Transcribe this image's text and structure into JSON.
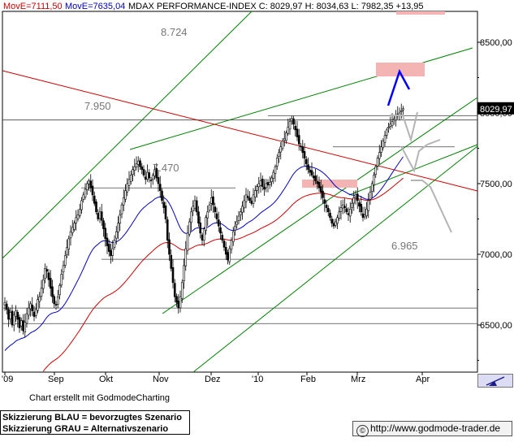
{
  "header": {
    "ma1": "MovE=7111,50",
    "ma2": "MovE=7635,04",
    "info": "MDAX PERFORMANCE-INDEX C: 8029,97 H: 8034,63 L: 7982,35 +13,95"
  },
  "colors": {
    "ma1": "#d10000",
    "ma2": "#0000c8",
    "candles": "#000000",
    "trend": "#008000",
    "resistance": "#d00000",
    "scenario_blue": "#0000ff",
    "scenario_gray": "#b4b4b4",
    "zone": "#f5b4b4"
  },
  "footer": {
    "credit": "Chart erstellt mit GodmodeCharting",
    "legend_blue": "Skizzierung BLAU = bevorzugtes Szenario",
    "legend_gray": "Skizzierung GRAU = Alternativszenario",
    "website": "http://www.godmode-trader.de"
  },
  "chart_data": {
    "type": "candlestick",
    "title": "MDAX PERFORMANCE-INDEX",
    "ylim": [
      6150,
      8800
    ],
    "y_ticks": [
      "6500,00",
      "7000,00",
      "7500,00",
      "8000,00",
      "8500,00"
    ],
    "y_tick_values": [
      6500,
      7000,
      7500,
      8000,
      8500
    ],
    "x_tick_labels": [
      "'09",
      "Sep",
      "Okt",
      "Nov",
      "Dez",
      "'10",
      "Feb",
      "Mrz",
      "Apr"
    ],
    "last_price_label": "8029,97",
    "horizontal_levels": [
      {
        "label": "8.724",
        "value": 8724
      },
      {
        "label": "7.950",
        "value": 7950
      },
      {
        "label": "7.470",
        "value": 7470
      },
      {
        "label": "6.965",
        "value": 6965
      }
    ],
    "last_candle": {
      "close": 8029.97,
      "high": 8034.63,
      "low": 7982.35,
      "change": 13.95
    },
    "moving_averages": [
      {
        "name": "MovE",
        "value": 7111.5
      },
      {
        "name": "MovE",
        "value": 7635.04
      }
    ],
    "closes": [
      6660,
      6610,
      6540,
      6590,
      6500,
      6570,
      6600,
      6540,
      6480,
      6530,
      6460,
      6520,
      6580,
      6620,
      6650,
      6600,
      6560,
      6610,
      6680,
      6700,
      6760,
      6820,
      6900,
      6880,
      6820,
      6760,
      6700,
      6650,
      6640,
      6700,
      6780,
      6860,
      6920,
      6990,
      7050,
      7110,
      7160,
      7190,
      7220,
      7260,
      7280,
      7320,
      7380,
      7420,
      7460,
      7500,
      7520,
      7470,
      7420,
      7360,
      7300,
      7250,
      7300,
      7240,
      7180,
      7110,
      7060,
      7020,
      6990,
      7040,
      7100,
      7160,
      7220,
      7280,
      7350,
      7400,
      7450,
      7500,
      7530,
      7560,
      7600,
      7620,
      7640,
      7660,
      7620,
      7600,
      7560,
      7530,
      7580,
      7540,
      7520,
      7560,
      7600,
      7540,
      7500,
      7450,
      7380,
      7330,
      7250,
      7100,
      7000,
      6900,
      6800,
      6700,
      6660,
      6620,
      6700,
      6800,
      6920,
      7040,
      7150,
      7230,
      7300,
      7340,
      7380,
      7300,
      7220,
      7150,
      7100,
      7180,
      7260,
      7300,
      7350,
      7400,
      7350,
      7300,
      7250,
      7200,
      7150,
      7100,
      7050,
      7000,
      6960,
      7040,
      7100,
      7160,
      7200,
      7230,
      7270,
      7300,
      7340,
      7380,
      7420,
      7400,
      7380,
      7360,
      7420,
      7450,
      7480,
      7500,
      7520,
      7480,
      7460,
      7500,
      7490,
      7510,
      7540,
      7580,
      7620,
      7680,
      7720,
      7760,
      7800,
      7820,
      7860,
      7900,
      7940,
      7960,
      7920,
      7880,
      7830,
      7780,
      7760,
      7720,
      7680,
      7640,
      7600,
      7580,
      7560,
      7540,
      7520,
      7500,
      7470,
      7440,
      7400,
      7360,
      7330,
      7300,
      7260,
      7220,
      7200,
      7230,
      7260,
      7300,
      7330,
      7350,
      7330,
      7300,
      7280,
      7320,
      7360,
      7400,
      7420,
      7380,
      7340,
      7300,
      7260,
      7280,
      7320,
      7380,
      7440,
      7500,
      7560,
      7620,
      7680,
      7720,
      7760,
      7800,
      7840,
      7880,
      7900,
      7920,
      7940,
      7960,
      7980,
      7990,
      8000,
      8016,
      8030
    ]
  }
}
